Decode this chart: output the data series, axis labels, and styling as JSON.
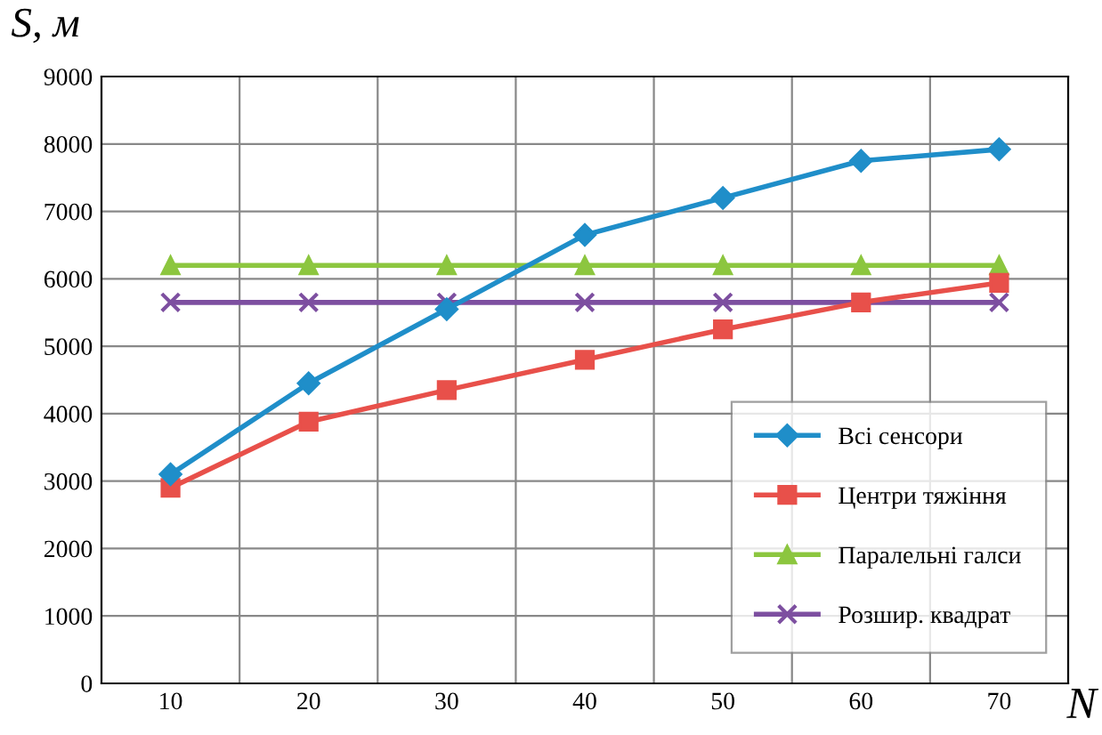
{
  "chart_data": {
    "type": "line",
    "ylabel": "S, м",
    "xlabel": "N",
    "categories": [
      "10",
      "20",
      "30",
      "40",
      "50",
      "60",
      "70"
    ],
    "series": [
      {
        "name": "Всі сенсори",
        "color": "#1f8ec9",
        "marker": "diamond",
        "values": [
          3100,
          4450,
          5550,
          6650,
          7200,
          7750,
          7920
        ]
      },
      {
        "name": "Центри тяжіння",
        "color": "#e8504a",
        "marker": "square",
        "values": [
          2900,
          3880,
          4350,
          4800,
          5250,
          5650,
          5940
        ]
      },
      {
        "name": "Паралельні галси",
        "color": "#8cc63f",
        "marker": "triangle",
        "values": [
          6200,
          6200,
          6200,
          6200,
          6200,
          6200,
          6200
        ]
      },
      {
        "name": "Розшир. квадрат",
        "color": "#7d4fa0",
        "marker": "cross",
        "values": [
          5650,
          5650,
          5650,
          5650,
          5650,
          5650,
          5650
        ]
      }
    ],
    "ylim": [
      0,
      9000
    ],
    "yticks": [
      0,
      1000,
      2000,
      3000,
      4000,
      5000,
      6000,
      7000,
      8000,
      9000
    ],
    "grid": true,
    "legend": "bottom right"
  }
}
